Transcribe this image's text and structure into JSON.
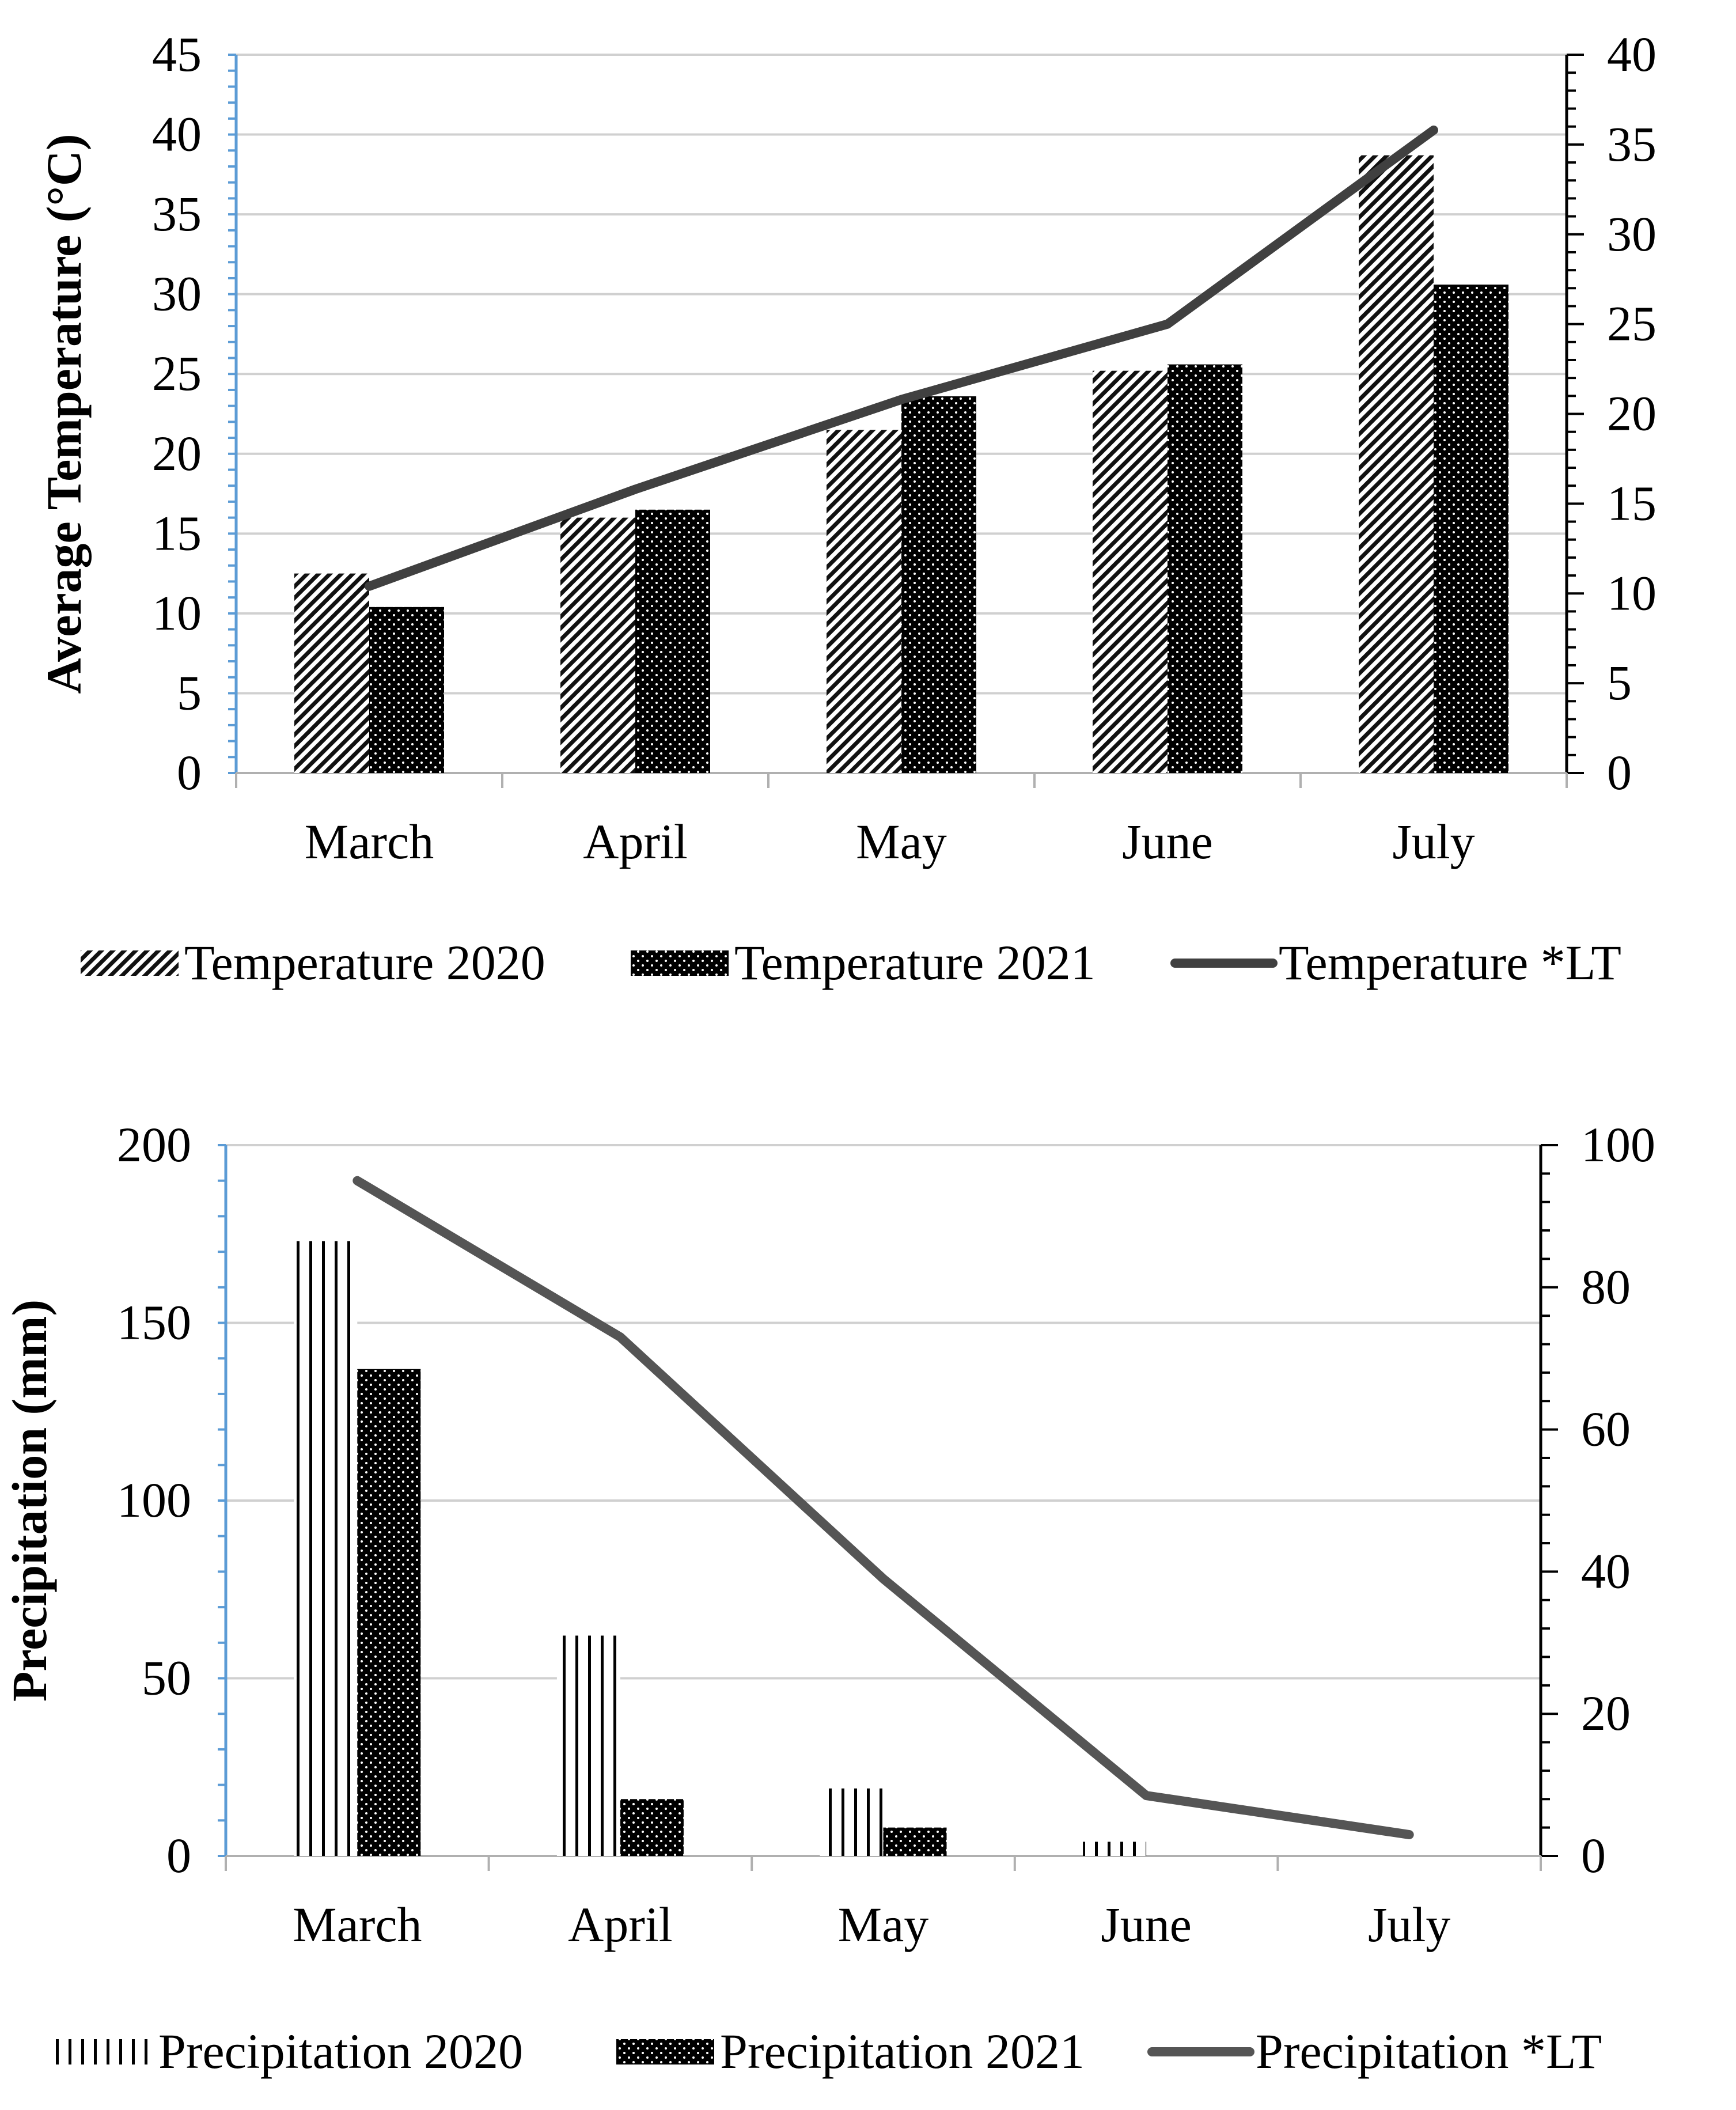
{
  "chart_data": [
    {
      "type": "bar",
      "categories": [
        "March",
        "April",
        "May",
        "June",
        "July"
      ],
      "series": [
        {
          "name": "Temperature 2020",
          "kind": "bar",
          "axis": "left",
          "pattern": "diagonal-hatch",
          "values": [
            12.5,
            16.0,
            21.5,
            25.2,
            38.7
          ]
        },
        {
          "name": "Temperature 2021",
          "kind": "bar",
          "axis": "left",
          "pattern": "dotted-black",
          "values": [
            10.4,
            16.5,
            23.6,
            25.6,
            30.6
          ]
        },
        {
          "name": "Temperature *LT",
          "kind": "line",
          "axis": "right",
          "color": "#404040",
          "values": [
            10.4,
            15.8,
            20.8,
            25.0,
            35.8
          ]
        }
      ],
      "ylabel": "Average Temperature (°C)",
      "ylim": [
        0,
        45
      ],
      "yticks": [
        "0",
        "5",
        "10",
        "15",
        "20",
        "25",
        "30",
        "35",
        "40",
        "45"
      ],
      "y2lim": [
        0,
        40
      ],
      "y2ticks": [
        "0",
        "5",
        "10",
        "15",
        "20",
        "25",
        "30",
        "35",
        "40"
      ],
      "legend": [
        "Temperature 2020",
        "Temperature 2021",
        "Temperature *LT"
      ],
      "legend_position": "bottom",
      "grid": true
    },
    {
      "type": "bar",
      "categories": [
        "March",
        "April",
        "May",
        "June",
        "July"
      ],
      "series": [
        {
          "name": "Precipitation 2020",
          "kind": "bar",
          "axis": "left",
          "pattern": "vertical-stripes",
          "values": [
            173,
            62,
            19,
            4,
            0
          ]
        },
        {
          "name": "Precipitation 2021",
          "kind": "bar",
          "axis": "left",
          "pattern": "dotted-black",
          "values": [
            137,
            16,
            8,
            0,
            0
          ]
        },
        {
          "name": "Precipitation *LT",
          "kind": "line",
          "axis": "right",
          "color": "#555555",
          "values": [
            95,
            73,
            39,
            8.5,
            3
          ]
        }
      ],
      "ylabel": "Precipitation (mm)",
      "ylim": [
        0,
        200
      ],
      "yticks": [
        "0",
        "50",
        "100",
        "150",
        "200"
      ],
      "y2lim": [
        0,
        100
      ],
      "y2ticks": [
        "0",
        "20",
        "40",
        "60",
        "80",
        "100"
      ],
      "legend": [
        "Precipitation 2020",
        "Precipitation 2021",
        "Precipitation *LT"
      ],
      "legend_position": "bottom",
      "grid": true
    }
  ]
}
